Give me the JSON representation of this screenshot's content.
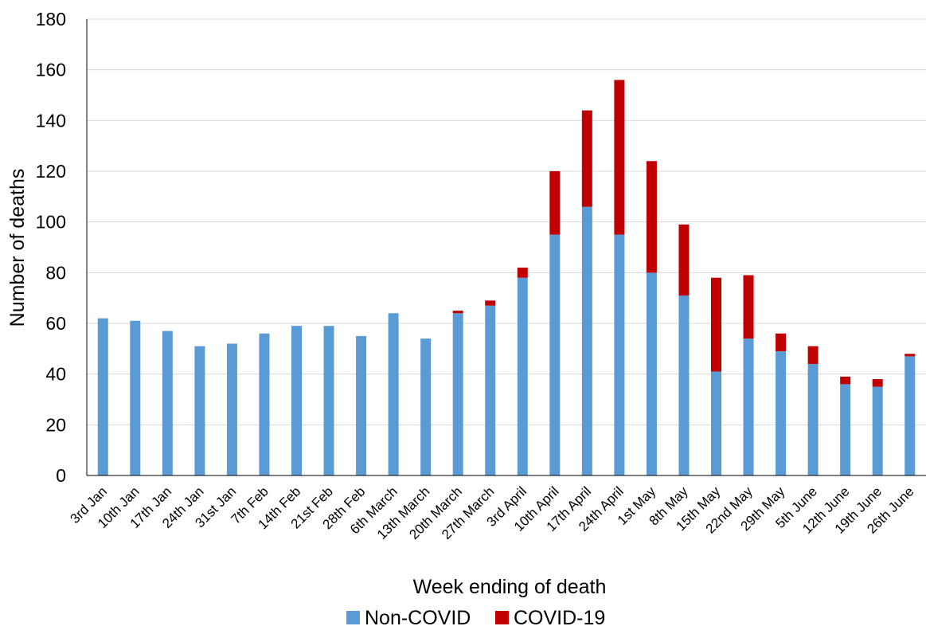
{
  "chart_data": {
    "type": "bar",
    "stacked": true,
    "categories": [
      "3rd Jan",
      "10th Jan",
      "17th Jan",
      "24th Jan",
      "31st Jan",
      "7th Feb",
      "14th Feb",
      "21st Feb",
      "28th Feb",
      "6th March",
      "13th March",
      "20th March",
      "27th March",
      "3rd April",
      "10th April",
      "17th April",
      "24th April",
      "1st May",
      "8th May",
      "15th May",
      "22nd May",
      "29th May",
      "5th June",
      "12th June",
      "19th June",
      "26th June"
    ],
    "series": [
      {
        "name": "Non-COVID",
        "color": "#5b9bd5",
        "values": [
          62,
          61,
          57,
          51,
          52,
          56,
          59,
          59,
          55,
          64,
          54,
          64,
          67,
          78,
          95,
          106,
          95,
          80,
          71,
          41,
          54,
          49,
          44,
          36,
          35,
          47
        ]
      },
      {
        "name": "COVID-19",
        "color": "#c00000",
        "values": [
          0,
          0,
          0,
          0,
          0,
          0,
          0,
          0,
          0,
          0,
          0,
          1,
          2,
          4,
          25,
          38,
          61,
          44,
          28,
          37,
          25,
          7,
          7,
          3,
          3,
          1
        ]
      }
    ],
    "xlabel": "Week ending of death",
    "ylabel": "Number of deaths",
    "ylim": [
      0,
      180
    ],
    "yticks": [
      0,
      20,
      40,
      60,
      80,
      100,
      120,
      140,
      160,
      180
    ],
    "grid": true,
    "legend_position": "bottom"
  }
}
